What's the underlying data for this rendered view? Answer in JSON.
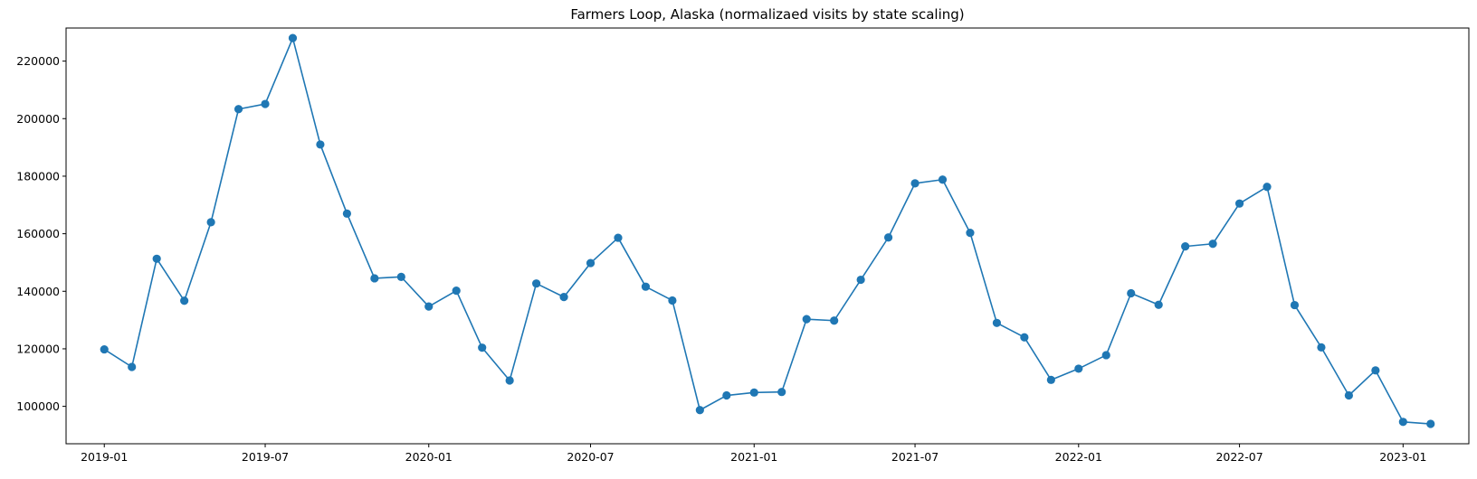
{
  "chart_data": {
    "type": "line",
    "title": "Farmers Loop, Alaska (normalizaed visits by state scaling)",
    "xlabel": "",
    "ylabel": "",
    "x_range": [
      "2018-11-19",
      "2023-03-16"
    ],
    "ylim": [
      87000,
      231500
    ],
    "xticks": [
      {
        "date": "2019-01-01",
        "label": "2019-01"
      },
      {
        "date": "2019-07-01",
        "label": "2019-07"
      },
      {
        "date": "2020-01-01",
        "label": "2020-01"
      },
      {
        "date": "2020-07-01",
        "label": "2020-07"
      },
      {
        "date": "2021-01-01",
        "label": "2021-01"
      },
      {
        "date": "2021-07-01",
        "label": "2021-07"
      },
      {
        "date": "2022-01-01",
        "label": "2022-01"
      },
      {
        "date": "2022-07-01",
        "label": "2022-07"
      },
      {
        "date": "2023-01-01",
        "label": "2023-01"
      }
    ],
    "yticks": [
      {
        "value": 100000,
        "label": "100000"
      },
      {
        "value": 120000,
        "label": "120000"
      },
      {
        "value": 140000,
        "label": "140000"
      },
      {
        "value": 160000,
        "label": "160000"
      },
      {
        "value": 180000,
        "label": "180000"
      },
      {
        "value": 200000,
        "label": "200000"
      },
      {
        "value": 220000,
        "label": "220000"
      }
    ],
    "grid": false,
    "legend": false,
    "series": [
      {
        "color": "#1f77b4",
        "marker": "circle",
        "x": [
          "2019-01-01",
          "2019-02-01",
          "2019-03-01",
          "2019-04-01",
          "2019-05-01",
          "2019-06-01",
          "2019-07-01",
          "2019-08-01",
          "2019-09-01",
          "2019-10-01",
          "2019-11-01",
          "2019-12-01",
          "2020-01-01",
          "2020-02-01",
          "2020-03-01",
          "2020-04-01",
          "2020-05-01",
          "2020-06-01",
          "2020-07-01",
          "2020-08-01",
          "2020-09-01",
          "2020-10-01",
          "2020-11-01",
          "2020-12-01",
          "2021-01-01",
          "2021-02-01",
          "2021-03-01",
          "2021-04-01",
          "2021-05-01",
          "2021-06-01",
          "2021-07-01",
          "2021-08-01",
          "2021-09-01",
          "2021-10-01",
          "2021-11-01",
          "2021-12-01",
          "2022-01-01",
          "2022-02-01",
          "2022-03-01",
          "2022-04-01",
          "2022-05-01",
          "2022-06-01",
          "2022-07-01",
          "2022-08-01",
          "2022-09-01",
          "2022-10-01",
          "2022-11-01",
          "2022-12-01",
          "2023-01-01",
          "2023-02-01"
        ],
        "y": [
          119800,
          113700,
          151300,
          136700,
          164000,
          203300,
          205100,
          228000,
          191000,
          167000,
          144500,
          145000,
          134700,
          140200,
          120400,
          109000,
          142700,
          138000,
          149800,
          158600,
          141600,
          136800,
          98700,
          103800,
          104800,
          105000,
          130300,
          129800,
          144000,
          158700,
          177500,
          178800,
          160300,
          129000,
          124000,
          109200,
          113100,
          117800,
          139300,
          135300,
          155600,
          156500,
          170500,
          176300,
          135200,
          120500,
          103800,
          112500,
          94600,
          93900
        ]
      }
    ]
  }
}
